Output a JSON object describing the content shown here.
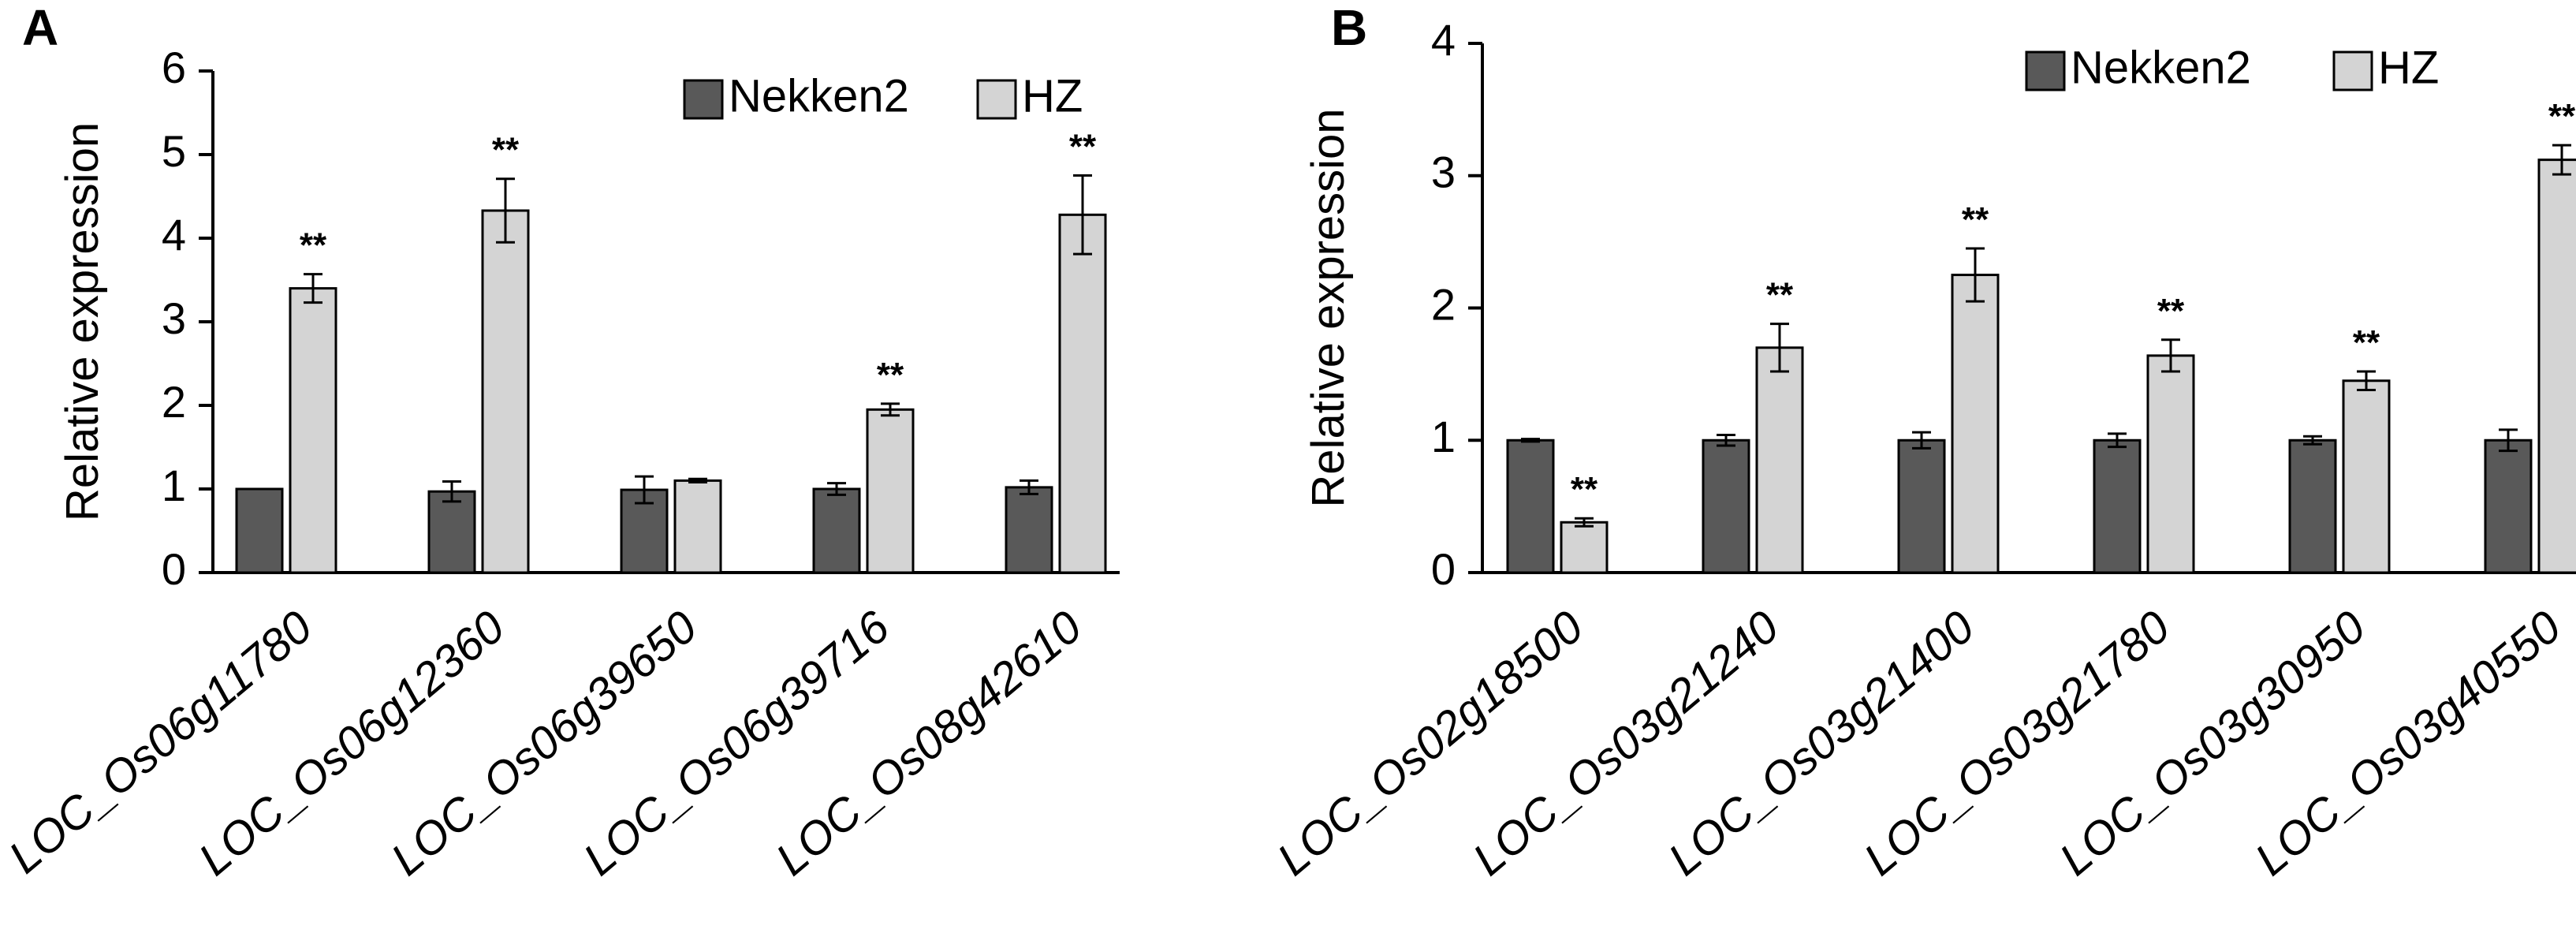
{
  "colors": {
    "nekken2": "#595959",
    "hz": "#d4d4d4",
    "stroke": "#000000"
  },
  "chart_data": [
    {
      "panel": "A",
      "type": "bar",
      "ylabel": "Relative expression",
      "ylim": [
        0,
        6
      ],
      "yticks": [
        0,
        1,
        2,
        3,
        4,
        5,
        6
      ],
      "legend_position": "top-right",
      "categories": [
        "LOC_Os06g11780",
        "LOC_Os06g12360",
        "LOC_Os06g39650",
        "LOC_Os06g39716",
        "LOC_Os08g42610"
      ],
      "series": [
        {
          "name": "Nekken2",
          "values": [
            1.0,
            0.97,
            0.99,
            1.0,
            1.02
          ],
          "errors": [
            0.0,
            0.12,
            0.16,
            0.07,
            0.08
          ]
        },
        {
          "name": "HZ",
          "values": [
            3.4,
            4.33,
            1.1,
            1.95,
            4.28
          ],
          "errors": [
            0.17,
            0.38,
            0.02,
            0.07,
            0.47
          ]
        }
      ],
      "significance": [
        "**",
        "**",
        "",
        "**",
        "**"
      ]
    },
    {
      "panel": "B",
      "type": "bar",
      "ylabel": "Relative expression",
      "ylim": [
        0,
        4
      ],
      "yticks": [
        0,
        1,
        2,
        3,
        4
      ],
      "legend_position": "top-right",
      "categories": [
        "LOC_Os02g18500",
        "LOC_Os03g21240",
        "LOC_Os03g21400",
        "LOC_Os03g21780",
        "LOC_Os03g30950",
        "LOC_Os03g40550"
      ],
      "series": [
        {
          "name": "Nekken2",
          "values": [
            1.0,
            1.0,
            1.0,
            1.0,
            1.0,
            1.0
          ],
          "errors": [
            0.01,
            0.04,
            0.06,
            0.05,
            0.03,
            0.08
          ]
        },
        {
          "name": "HZ",
          "values": [
            0.38,
            1.7,
            2.25,
            1.64,
            1.45,
            3.12
          ],
          "errors": [
            0.03,
            0.18,
            0.2,
            0.12,
            0.07,
            0.11
          ]
        }
      ],
      "significance": [
        "**",
        "**",
        "**",
        "**",
        "**",
        "**"
      ]
    }
  ]
}
